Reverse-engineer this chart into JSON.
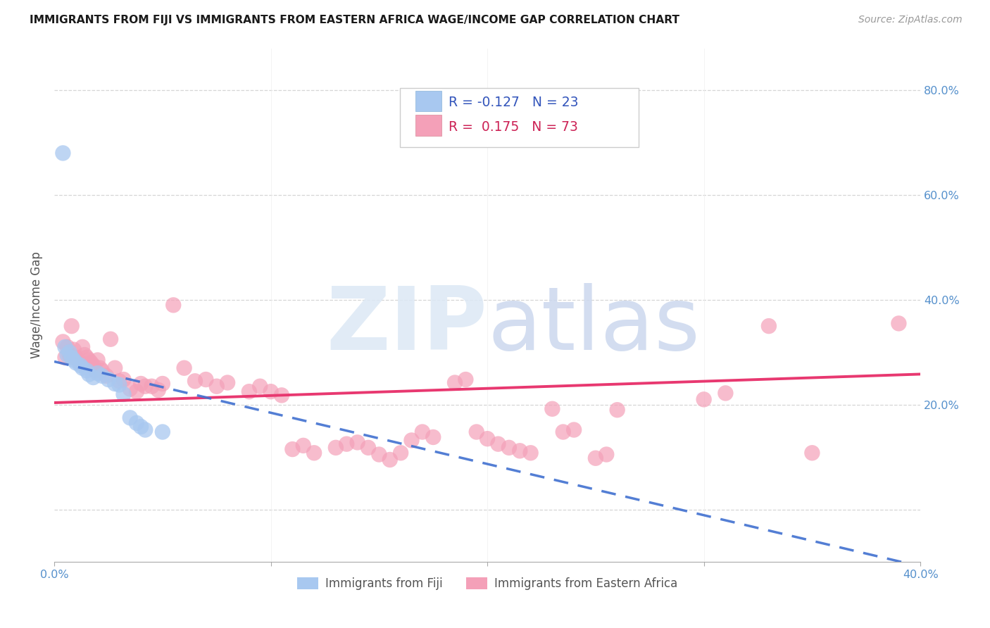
{
  "title": "IMMIGRANTS FROM FIJI VS IMMIGRANTS FROM EASTERN AFRICA WAGE/INCOME GAP CORRELATION CHART",
  "source": "Source: ZipAtlas.com",
  "ylabel": "Wage/Income Gap",
  "xlim": [
    0.0,
    0.4
  ],
  "ylim": [
    -0.1,
    0.88
  ],
  "ytick_vals": [
    0.0,
    0.2,
    0.4,
    0.6,
    0.8
  ],
  "ytick_labels": [
    "",
    "20.0%",
    "40.0%",
    "60.0%",
    "80.0%"
  ],
  "xtick_vals": [
    0.0,
    0.1,
    0.2,
    0.3,
    0.4
  ],
  "xtick_labels": [
    "0.0%",
    "",
    "",
    "",
    "40.0%"
  ],
  "fiji_color": "#a8c8f0",
  "eastern_africa_color": "#f4a0b8",
  "fiji_line_color": "#4070d0",
  "eastern_africa_line_color": "#e83870",
  "fiji_R": -0.127,
  "fiji_N": 23,
  "eastern_africa_R": 0.175,
  "eastern_africa_N": 73,
  "fiji_x": [
    0.004,
    0.005,
    0.006,
    0.007,
    0.008,
    0.009,
    0.01,
    0.012,
    0.013,
    0.015,
    0.016,
    0.018,
    0.02,
    0.022,
    0.025,
    0.028,
    0.03,
    0.032,
    0.035,
    0.038,
    0.04,
    0.042,
    0.05
  ],
  "fiji_y": [
    0.68,
    0.31,
    0.295,
    0.3,
    0.29,
    0.285,
    0.28,
    0.275,
    0.27,
    0.265,
    0.258,
    0.252,
    0.26,
    0.255,
    0.248,
    0.24,
    0.238,
    0.22,
    0.175,
    0.165,
    0.158,
    0.152,
    0.148
  ],
  "ea_x": [
    0.004,
    0.005,
    0.006,
    0.007,
    0.008,
    0.009,
    0.01,
    0.011,
    0.012,
    0.013,
    0.014,
    0.015,
    0.016,
    0.017,
    0.018,
    0.019,
    0.02,
    0.021,
    0.022,
    0.024,
    0.026,
    0.028,
    0.03,
    0.032,
    0.035,
    0.038,
    0.04,
    0.042,
    0.045,
    0.048,
    0.05,
    0.055,
    0.06,
    0.065,
    0.07,
    0.075,
    0.08,
    0.09,
    0.095,
    0.1,
    0.105,
    0.11,
    0.115,
    0.12,
    0.13,
    0.135,
    0.14,
    0.145,
    0.15,
    0.155,
    0.16,
    0.165,
    0.17,
    0.175,
    0.185,
    0.19,
    0.195,
    0.2,
    0.205,
    0.21,
    0.215,
    0.22,
    0.23,
    0.235,
    0.24,
    0.25,
    0.255,
    0.26,
    0.3,
    0.31,
    0.33,
    0.35,
    0.39
  ],
  "ea_y": [
    0.32,
    0.29,
    0.31,
    0.295,
    0.35,
    0.305,
    0.29,
    0.285,
    0.28,
    0.31,
    0.295,
    0.29,
    0.285,
    0.28,
    0.275,
    0.265,
    0.285,
    0.27,
    0.265,
    0.255,
    0.325,
    0.27,
    0.245,
    0.248,
    0.23,
    0.225,
    0.24,
    0.235,
    0.235,
    0.228,
    0.24,
    0.39,
    0.27,
    0.245,
    0.248,
    0.235,
    0.242,
    0.225,
    0.235,
    0.225,
    0.218,
    0.115,
    0.122,
    0.108,
    0.118,
    0.125,
    0.128,
    0.118,
    0.105,
    0.095,
    0.108,
    0.132,
    0.148,
    0.138,
    0.242,
    0.248,
    0.148,
    0.135,
    0.125,
    0.118,
    0.112,
    0.108,
    0.192,
    0.148,
    0.152,
    0.098,
    0.105,
    0.19,
    0.21,
    0.222,
    0.35,
    0.108,
    0.355
  ]
}
